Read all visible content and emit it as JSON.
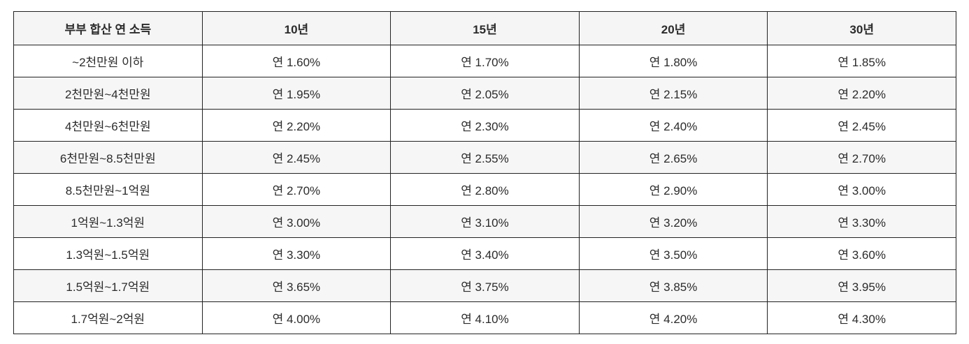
{
  "table": {
    "columns": [
      "부부 합산 연 소득",
      "10년",
      "15년",
      "20년",
      "30년"
    ],
    "rows": [
      {
        "cells": [
          "~2천만원 이하",
          "연 1.60%",
          "연 1.70%",
          "연 1.80%",
          "연 1.85%"
        ]
      },
      {
        "cells": [
          "2천만원~4천만원",
          "연 1.95%",
          "연 2.05%",
          "연 2.15%",
          "연 2.20%"
        ]
      },
      {
        "cells": [
          "4천만원~6천만원",
          "연 2.20%",
          "연 2.30%",
          "연 2.40%",
          "연 2.45%"
        ]
      },
      {
        "cells": [
          "6천만원~8.5천만원",
          "연 2.45%",
          "연 2.55%",
          "연 2.65%",
          "연 2.70%"
        ]
      },
      {
        "cells": [
          "8.5천만원~1억원",
          "연 2.70%",
          "연 2.80%",
          "연 2.90%",
          "연 3.00%"
        ]
      },
      {
        "cells": [
          "1억원~1.3억원",
          "연 3.00%",
          "연 3.10%",
          "연 3.20%",
          "연 3.30%"
        ]
      },
      {
        "cells": [
          "1.3억원~1.5억원",
          "연 3.30%",
          "연 3.40%",
          "연 3.50%",
          "연 3.60%"
        ]
      },
      {
        "cells": [
          "1.5억원~1.7억원",
          "연 3.65%",
          "연 3.75%",
          "연 3.85%",
          "연 3.95%"
        ]
      },
      {
        "cells": [
          "1.7억원~2억원",
          "연 4.00%",
          "연 4.10%",
          "연 4.20%",
          "연 4.30%"
        ]
      }
    ]
  },
  "chart_data": {
    "type": "table",
    "row_header_label": "부부 합산 연 소득",
    "categories": [
      "~2천만원 이하",
      "2천만원~4천만원",
      "4천만원~6천만원",
      "6천만원~8.5천만원",
      "8.5천만원~1억원",
      "1억원~1.3억원",
      "1.3억원~1.5억원",
      "1.5억원~1.7억원",
      "1.7억원~2억원"
    ],
    "series": [
      {
        "name": "10년",
        "unit": "% 연",
        "values": [
          1.6,
          1.95,
          2.2,
          2.45,
          2.7,
          3.0,
          3.3,
          3.65,
          4.0
        ]
      },
      {
        "name": "15년",
        "unit": "% 연",
        "values": [
          1.7,
          2.05,
          2.3,
          2.55,
          2.8,
          3.1,
          3.4,
          3.75,
          4.1
        ]
      },
      {
        "name": "20년",
        "unit": "% 연",
        "values": [
          1.8,
          2.15,
          2.4,
          2.65,
          2.9,
          3.2,
          3.5,
          3.85,
          4.2
        ]
      },
      {
        "name": "30년",
        "unit": "% 연",
        "values": [
          1.85,
          2.2,
          2.45,
          2.7,
          3.0,
          3.3,
          3.6,
          3.95,
          4.3
        ]
      }
    ],
    "value_prefix": "연 ",
    "value_suffix": "%",
    "grid": true,
    "legend_position": "none"
  },
  "colors": {
    "border": "#222222",
    "header_bg": "#f5f5f5",
    "stripe_bg": "#f6f6f6",
    "row_bg": "#ffffff",
    "text": "#2b2b2b"
  }
}
